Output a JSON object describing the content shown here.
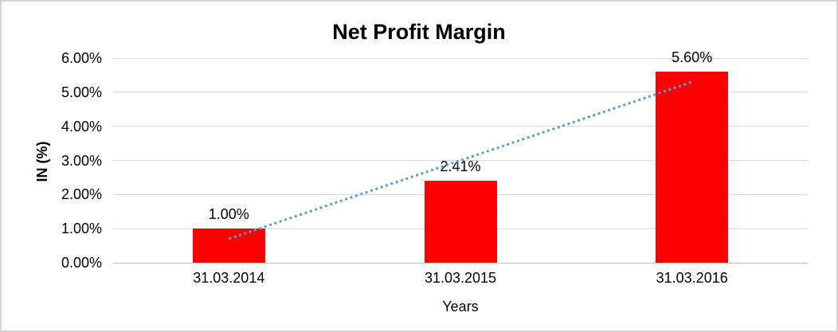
{
  "chart_data": {
    "type": "bar",
    "title": "Net Profit Margin",
    "xlabel": "Years",
    "ylabel": "IN (%)",
    "categories": [
      "31.03.2014",
      "31.03.2015",
      "31.03.2016"
    ],
    "values": [
      1.0,
      2.41,
      5.6
    ],
    "value_labels": [
      "1.00%",
      "2.41%",
      "5.60%"
    ],
    "y_ticks": [
      "0.00%",
      "1.00%",
      "2.00%",
      "3.00%",
      "4.00%",
      "5.00%",
      "6.00%"
    ],
    "y_tick_values": [
      0,
      1,
      2,
      3,
      4,
      5,
      6
    ],
    "ylim": [
      0,
      6
    ],
    "grid": true,
    "legend": false,
    "colors": {
      "bar": "#FF0000",
      "gridline": "#D9D9D9",
      "axis_line": "#BFBFBF",
      "trendline": "#5B9BD5",
      "text": "#000000",
      "chart_border": "#D4D4D4"
    },
    "trendline": {
      "type": "linear",
      "style": "dotted",
      "start_value": 0.7,
      "end_value": 5.3
    }
  }
}
